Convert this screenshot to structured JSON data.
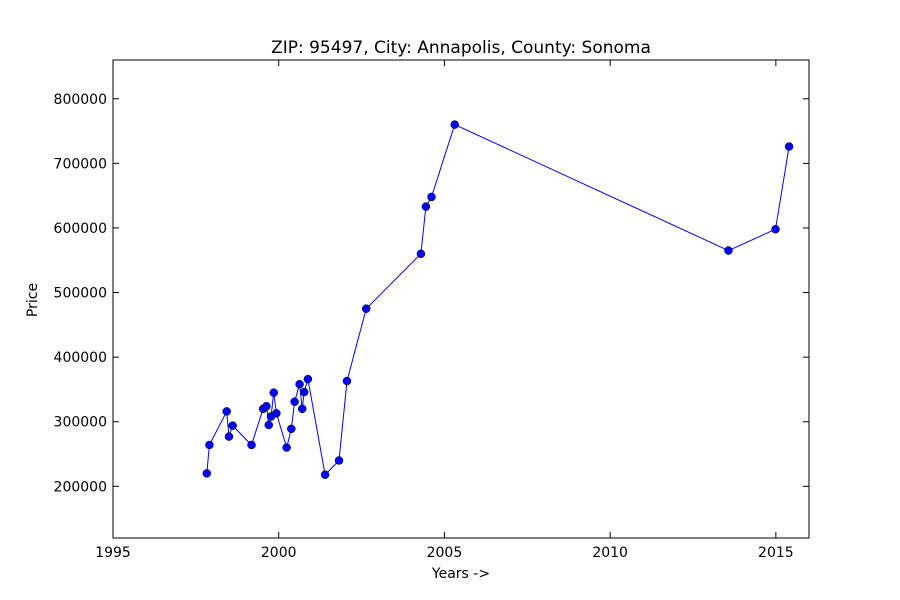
{
  "chart_data": {
    "type": "line",
    "title": "ZIP: 95497, City: Annapolis, County: Sonoma",
    "xlabel": "Years ->",
    "ylabel": "Price",
    "xlim": [
      1995,
      2016
    ],
    "ylim": [
      120000,
      860000
    ],
    "xticks": [
      "1995",
      "2000",
      "2005",
      "2010",
      "2015"
    ],
    "xtick_values": [
      1995,
      2000,
      2005,
      2010,
      2015
    ],
    "yticks": [
      "200000",
      "300000",
      "400000",
      "500000",
      "600000",
      "700000",
      "800000"
    ],
    "ytick_values": [
      200000,
      300000,
      400000,
      500000,
      600000,
      700000,
      800000
    ],
    "grid": false,
    "series": [
      {
        "color": "#0000ff",
        "marker": "circle",
        "points": [
          {
            "x": 1997.83,
            "y": 220000
          },
          {
            "x": 1997.91,
            "y": 264000
          },
          {
            "x": 1998.43,
            "y": 316000
          },
          {
            "x": 1998.5,
            "y": 277000
          },
          {
            "x": 1998.61,
            "y": 294000
          },
          {
            "x": 1999.18,
            "y": 264000
          },
          {
            "x": 1999.53,
            "y": 320000
          },
          {
            "x": 1999.63,
            "y": 324000
          },
          {
            "x": 1999.7,
            "y": 295000
          },
          {
            "x": 1999.77,
            "y": 308000
          },
          {
            "x": 1999.85,
            "y": 345000
          },
          {
            "x": 1999.93,
            "y": 313000
          },
          {
            "x": 2000.24,
            "y": 260000
          },
          {
            "x": 2000.38,
            "y": 289000
          },
          {
            "x": 2000.48,
            "y": 331000
          },
          {
            "x": 2000.63,
            "y": 358000
          },
          {
            "x": 2000.71,
            "y": 320000
          },
          {
            "x": 2000.77,
            "y": 346000
          },
          {
            "x": 2000.88,
            "y": 366000
          },
          {
            "x": 2001.4,
            "y": 218000
          },
          {
            "x": 2001.82,
            "y": 240000
          },
          {
            "x": 2002.06,
            "y": 363000
          },
          {
            "x": 2002.64,
            "y": 475000
          },
          {
            "x": 2004.29,
            "y": 560000
          },
          {
            "x": 2004.44,
            "y": 633000
          },
          {
            "x": 2004.61,
            "y": 648000
          },
          {
            "x": 2005.31,
            "y": 760000
          },
          {
            "x": 2013.57,
            "y": 565000
          },
          {
            "x": 2014.99,
            "y": 598000
          },
          {
            "x": 2015.4,
            "y": 726000
          }
        ]
      }
    ]
  }
}
